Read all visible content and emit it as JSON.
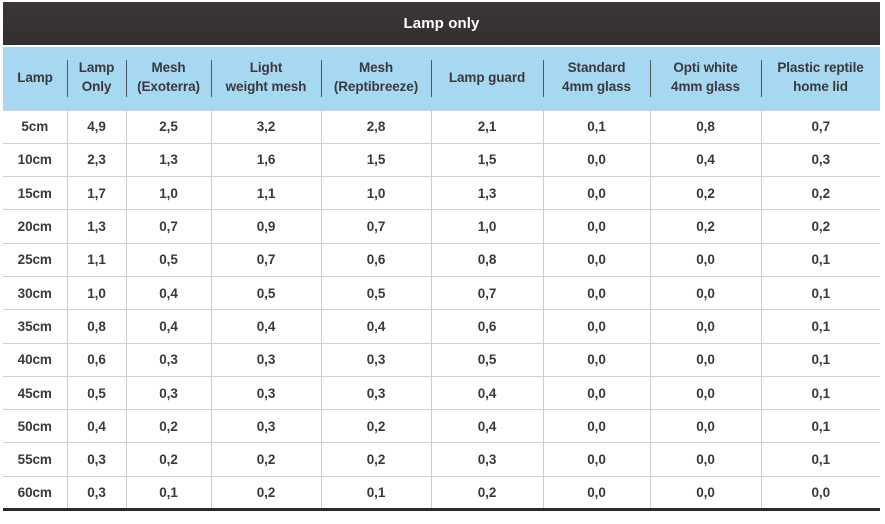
{
  "colors": {
    "title_bar_bg": "#3a3637",
    "header_bg": "#a6d9f1",
    "grid_line": "#cfcfcf",
    "text": "#3c3839",
    "title_text": "#ffffff",
    "bottom_border": "#2e2a2c",
    "header_divider": "#52575c"
  },
  "table": {
    "title": "Lamp only",
    "columns": [
      "Lamp",
      "Lamp\nOnly",
      "Mesh\n(Exoterra)",
      "Light\nweight mesh",
      "Mesh\n(Reptibreeze)",
      "Lamp guard",
      "Standard\n4mm glass",
      "Opti white\n4mm glass",
      "Plastic reptile\nhome lid"
    ],
    "rows": [
      {
        "label": "5cm",
        "values": [
          "4,9",
          "2,5",
          "3,2",
          "2,8",
          "2,1",
          "0,1",
          "0,8",
          "0,7"
        ]
      },
      {
        "label": "10cm",
        "values": [
          "2,3",
          "1,3",
          "1,6",
          "1,5",
          "1,5",
          "0,0",
          "0,4",
          "0,3"
        ]
      },
      {
        "label": "15cm",
        "values": [
          "1,7",
          "1,0",
          "1,1",
          "1,0",
          "1,3",
          "0,0",
          "0,2",
          "0,2"
        ]
      },
      {
        "label": "20cm",
        "values": [
          "1,3",
          "0,7",
          "0,9",
          "0,7",
          "1,0",
          "0,0",
          "0,2",
          "0,2"
        ]
      },
      {
        "label": "25cm",
        "values": [
          "1,1",
          "0,5",
          "0,7",
          "0,6",
          "0,8",
          "0,0",
          "0,0",
          "0,1"
        ]
      },
      {
        "label": "30cm",
        "values": [
          "1,0",
          "0,4",
          "0,5",
          "0,5",
          "0,7",
          "0,0",
          "0,0",
          "0,1"
        ]
      },
      {
        "label": "35cm",
        "values": [
          "0,8",
          "0,4",
          "0,4",
          "0,4",
          "0,6",
          "0,0",
          "0,0",
          "0,1"
        ]
      },
      {
        "label": "40cm",
        "values": [
          "0,6",
          "0,3",
          "0,3",
          "0,3",
          "0,5",
          "0,0",
          "0,0",
          "0,1"
        ]
      },
      {
        "label": "45cm",
        "values": [
          "0,5",
          "0,3",
          "0,3",
          "0,3",
          "0,4",
          "0,0",
          "0,0",
          "0,1"
        ]
      },
      {
        "label": "50cm",
        "values": [
          "0,4",
          "0,2",
          "0,3",
          "0,2",
          "0,4",
          "0,0",
          "0,0",
          "0,1"
        ]
      },
      {
        "label": "55cm",
        "values": [
          "0,3",
          "0,2",
          "0,2",
          "0,2",
          "0,3",
          "0,0",
          "0,0",
          "0,1"
        ]
      },
      {
        "label": "60cm",
        "values": [
          "0,3",
          "0,1",
          "0,2",
          "0,1",
          "0,2",
          "0,0",
          "0,0",
          "0,0"
        ]
      }
    ]
  },
  "chart_data": {
    "type": "table",
    "title": "Lamp only",
    "row_header": "Lamp",
    "categories": [
      "5cm",
      "10cm",
      "15cm",
      "20cm",
      "25cm",
      "30cm",
      "35cm",
      "40cm",
      "45cm",
      "50cm",
      "55cm",
      "60cm"
    ],
    "series": [
      {
        "name": "Lamp Only",
        "values": [
          4.9,
          2.3,
          1.7,
          1.3,
          1.1,
          1.0,
          0.8,
          0.6,
          0.5,
          0.4,
          0.3,
          0.3
        ]
      },
      {
        "name": "Mesh (Exoterra)",
        "values": [
          2.5,
          1.3,
          1.0,
          0.7,
          0.5,
          0.4,
          0.4,
          0.3,
          0.3,
          0.2,
          0.2,
          0.1
        ]
      },
      {
        "name": "Light weight mesh",
        "values": [
          3.2,
          1.6,
          1.1,
          0.9,
          0.7,
          0.5,
          0.4,
          0.3,
          0.3,
          0.3,
          0.2,
          0.2
        ]
      },
      {
        "name": "Mesh (Reptibreeze)",
        "values": [
          2.8,
          1.5,
          1.0,
          0.7,
          0.6,
          0.5,
          0.4,
          0.3,
          0.3,
          0.2,
          0.2,
          0.1
        ]
      },
      {
        "name": "Lamp guard",
        "values": [
          2.1,
          1.5,
          1.3,
          1.0,
          0.8,
          0.7,
          0.6,
          0.5,
          0.4,
          0.4,
          0.3,
          0.2
        ]
      },
      {
        "name": "Standard 4mm glass",
        "values": [
          0.1,
          0.0,
          0.0,
          0.0,
          0.0,
          0.0,
          0.0,
          0.0,
          0.0,
          0.0,
          0.0,
          0.0
        ]
      },
      {
        "name": "Opti white 4mm glass",
        "values": [
          0.8,
          0.4,
          0.2,
          0.2,
          0.0,
          0.0,
          0.0,
          0.0,
          0.0,
          0.0,
          0.0,
          0.0
        ]
      },
      {
        "name": "Plastic reptile home lid",
        "values": [
          0.7,
          0.3,
          0.2,
          0.2,
          0.1,
          0.1,
          0.1,
          0.1,
          0.1,
          0.1,
          0.1,
          0.0
        ]
      }
    ],
    "decimal_separator": ","
  }
}
